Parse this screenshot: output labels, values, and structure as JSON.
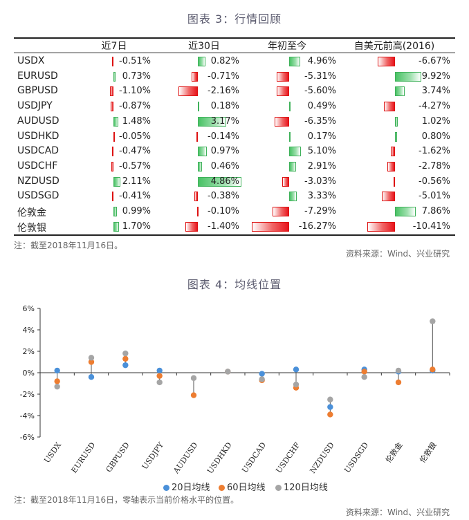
{
  "table": {
    "title": "图表 3：行情回顾",
    "headers": [
      "近7日",
      "近30日",
      "年初至今",
      "自美元前高(2016)"
    ],
    "rows": [
      {
        "name": "USDX",
        "values": [
          "-0.51%",
          "0.82%",
          "4.96%",
          "-6.67%"
        ],
        "nums": [
          -0.51,
          0.82,
          4.96,
          -6.67
        ]
      },
      {
        "name": "EURUSD",
        "values": [
          "0.73%",
          "-0.71%",
          "-5.31%",
          "9.92%"
        ],
        "nums": [
          0.73,
          -0.71,
          -5.31,
          9.92
        ]
      },
      {
        "name": "GBPUSD",
        "values": [
          "-1.10%",
          "-2.16%",
          "-5.60%",
          "3.74%"
        ],
        "nums": [
          -1.1,
          -2.16,
          -5.6,
          3.74
        ]
      },
      {
        "name": "USDJPY",
        "values": [
          "-0.87%",
          "0.18%",
          "0.49%",
          "-4.27%"
        ],
        "nums": [
          -0.87,
          0.18,
          0.49,
          -4.27
        ]
      },
      {
        "name": "AUDUSD",
        "values": [
          "1.48%",
          "3.17%",
          "-6.35%",
          "1.02%"
        ],
        "nums": [
          1.48,
          3.17,
          -6.35,
          1.02
        ]
      },
      {
        "name": "USDHKD",
        "values": [
          "-0.05%",
          "-0.14%",
          "0.17%",
          "0.80%"
        ],
        "nums": [
          -0.05,
          -0.14,
          0.17,
          0.8
        ]
      },
      {
        "name": "USDCAD",
        "values": [
          "-0.47%",
          "0.97%",
          "5.10%",
          "-1.62%"
        ],
        "nums": [
          -0.47,
          0.97,
          5.1,
          -1.62
        ]
      },
      {
        "name": "USDCHF",
        "values": [
          "-0.57%",
          "0.46%",
          "2.91%",
          "-2.78%"
        ],
        "nums": [
          -0.57,
          0.46,
          2.91,
          -2.78
        ]
      },
      {
        "name": "NZDUSD",
        "values": [
          "2.11%",
          "4.86%",
          "-3.03%",
          "-0.56%"
        ],
        "nums": [
          2.11,
          4.86,
          -3.03,
          -0.56
        ]
      },
      {
        "name": "USDSGD",
        "values": [
          "-0.41%",
          "-0.38%",
          "3.33%",
          "-5.01%"
        ],
        "nums": [
          -0.41,
          -0.38,
          3.33,
          -5.01
        ]
      },
      {
        "name": "伦敦金",
        "values": [
          "0.99%",
          "-0.10%",
          "-7.29%",
          "7.86%"
        ],
        "nums": [
          0.99,
          -0.1,
          -7.29,
          7.86
        ]
      },
      {
        "name": "伦敦银",
        "values": [
          "1.70%",
          "-1.40%",
          "-16.27%",
          "-10.41%"
        ],
        "nums": [
          1.7,
          -1.4,
          -16.27,
          -10.41
        ]
      }
    ],
    "note": "注：截至2018年11月16日。",
    "source": "资料来源：Wind、兴业研究"
  },
  "chart_data": {
    "type": "scatter",
    "title": "图表 4：均线位置",
    "categories": [
      "USDX",
      "EURUSD",
      "GBPUSD",
      "USDJPY",
      "AUDUSD",
      "USDHKD",
      "USDCAD",
      "USDCHF",
      "NZDUSD",
      "USDSGD",
      "伦敦金",
      "伦敦银"
    ],
    "series": [
      {
        "name": "20日均线",
        "color": "#4a90d9",
        "values": [
          0.2,
          -0.4,
          0.7,
          0.2,
          null,
          0.1,
          -0.1,
          0.3,
          -3.2,
          0.3,
          0.1,
          0.2
        ]
      },
      {
        "name": "60日均线",
        "color": "#ed7d31",
        "values": [
          -0.8,
          1.0,
          1.3,
          -0.3,
          -2.1,
          0.1,
          -0.7,
          -1.4,
          -3.9,
          0.1,
          -0.9,
          0.3
        ]
      },
      {
        "name": "120日均线",
        "color": "#a5a5a5",
        "values": [
          -1.3,
          1.4,
          1.8,
          -0.9,
          -0.5,
          0.1,
          -0.6,
          -1.1,
          -2.5,
          -0.4,
          0.2,
          4.8
        ]
      }
    ],
    "yticks": [
      "6%",
      "4%",
      "2%",
      "0%",
      "-2%",
      "-4%",
      "-6%"
    ],
    "ylim": [
      -6,
      6
    ],
    "note": "注：截至2018年11月16日，零轴表示当前价格水平的位置。",
    "source": "资料来源：Wind、兴业研究"
  },
  "colors": {
    "negative": "#e8141c",
    "positive": "#49c265",
    "grid": "#222222"
  }
}
